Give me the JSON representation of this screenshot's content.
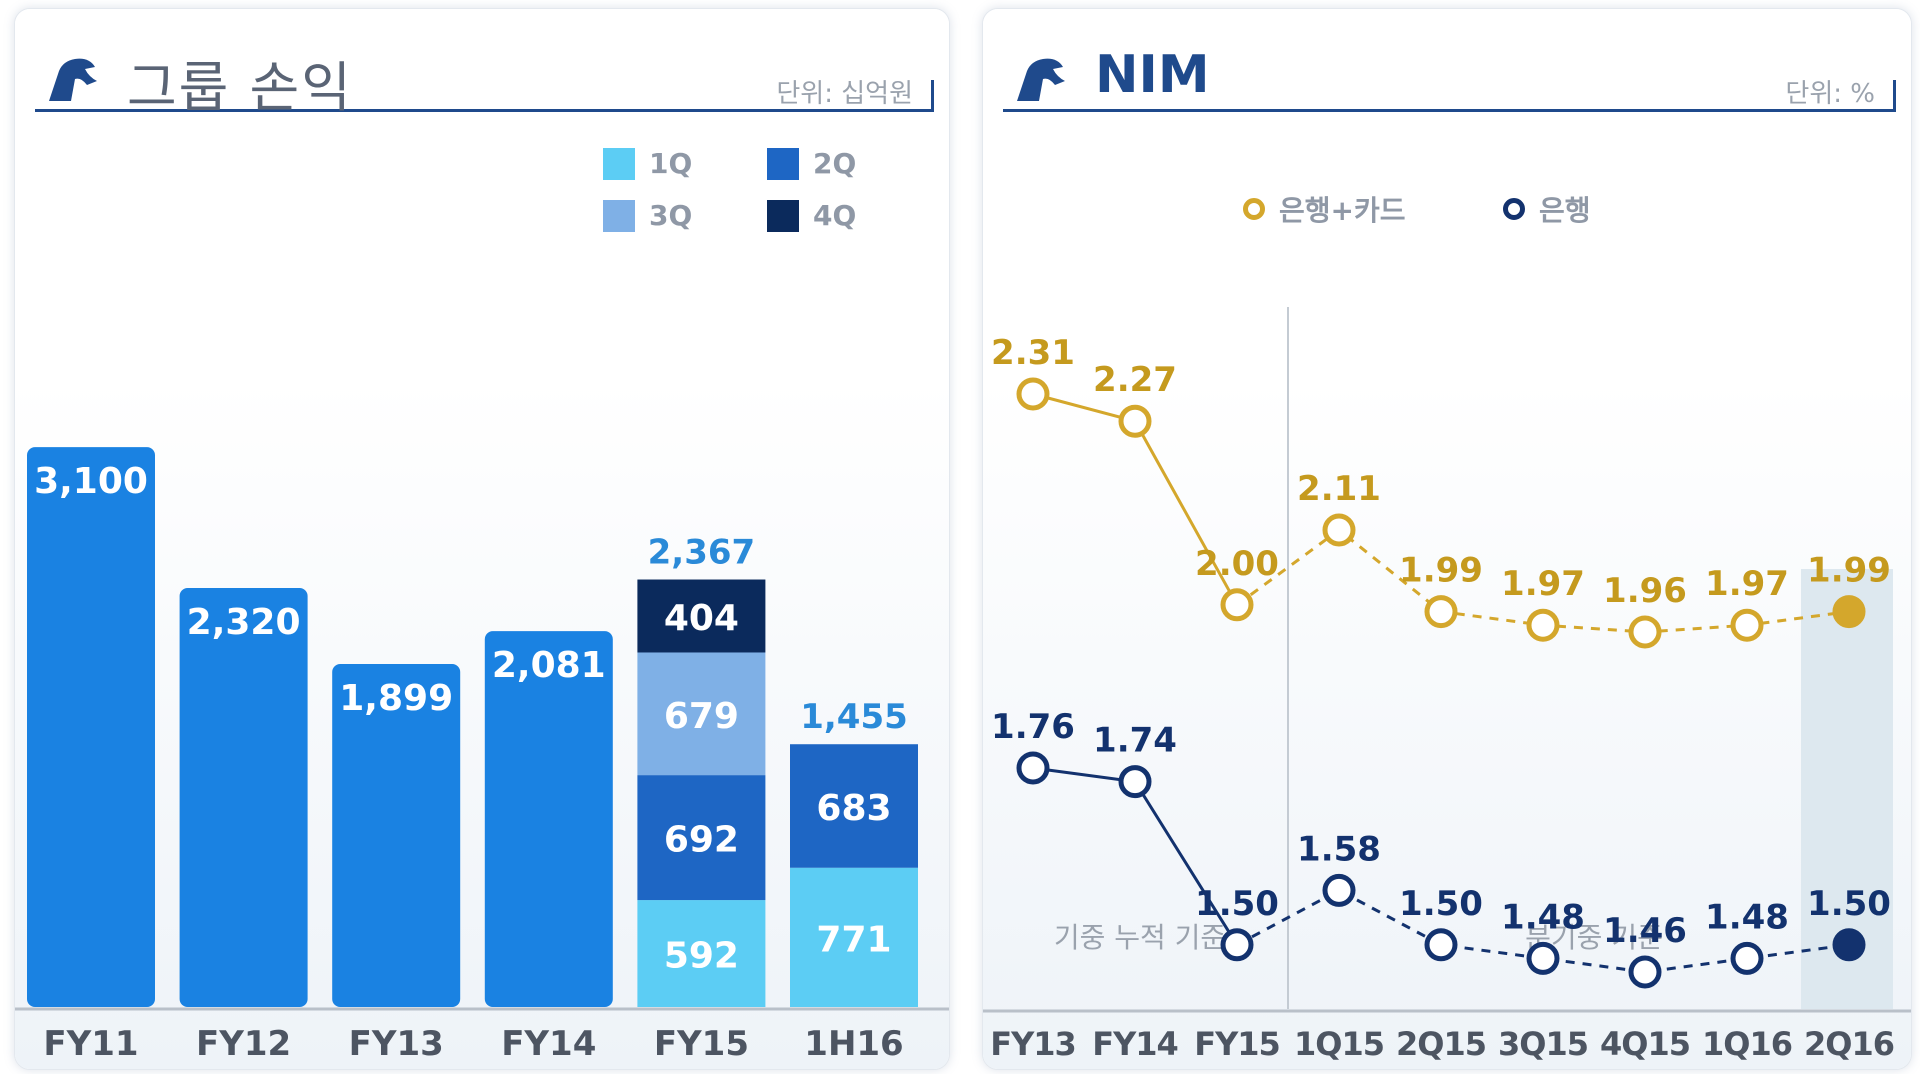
{
  "left_panel": {
    "title": "그룹 손익",
    "unit": "단위: 십억원",
    "legend": [
      {
        "label": "1Q",
        "color": "#5ccdf4"
      },
      {
        "label": "2Q",
        "color": "#1e66c4"
      },
      {
        "label": "3Q",
        "color": "#7fb0e6"
      },
      {
        "label": "4Q",
        "color": "#0b2a5c"
      }
    ]
  },
  "right_panel": {
    "title": "NIM",
    "unit": "단위: %",
    "legend": [
      {
        "label": "은행+카드",
        "color": "#d4a72c"
      },
      {
        "label": "은행",
        "color": "#13326e"
      }
    ],
    "section_labels": [
      "기중 누적 기준",
      "분기중 기준"
    ]
  },
  "chart_data": [
    {
      "type": "bar",
      "title": "그룹 손익",
      "unit": "단위: 십억원",
      "categories": [
        "FY11",
        "FY12",
        "FY13",
        "FY14",
        "FY15",
        "1H16"
      ],
      "totals": [
        3100,
        2320,
        1899,
        2081,
        2367,
        1455
      ],
      "total_labels": [
        "3,100",
        "2,320",
        "1,899",
        "2,081",
        "2,367",
        "1,455"
      ],
      "stacked": [
        {
          "category": "FY15",
          "segments": [
            {
              "series": "1Q",
              "value": 592
            },
            {
              "series": "2Q",
              "value": 692
            },
            {
              "series": "3Q",
              "value": 679
            },
            {
              "series": "4Q",
              "value": 404
            }
          ]
        },
        {
          "category": "1H16",
          "segments": [
            {
              "series": "1Q",
              "value": 771
            },
            {
              "series": "2Q",
              "value": 683
            }
          ]
        }
      ],
      "bar_color": "#1a82e2",
      "total_label_color": "#2a8ad8"
    },
    {
      "type": "line",
      "title": "NIM",
      "unit": "단위: %",
      "x": [
        "FY13",
        "FY14",
        "FY15",
        "1Q15",
        "2Q15",
        "3Q15",
        "4Q15",
        "1Q16",
        "2Q16"
      ],
      "series": [
        {
          "name": "은행+카드",
          "color": "#d4a72c",
          "label_color": "#c59a1e",
          "values": [
            2.31,
            2.27,
            2.0,
            2.11,
            1.99,
            1.97,
            1.96,
            1.97,
            1.99
          ],
          "labels": [
            "2.31",
            "2.27",
            "2.00",
            "2.11",
            "1.99",
            "1.97",
            "1.96",
            "1.97",
            "1.99"
          ]
        },
        {
          "name": "은행",
          "color": "#13326e",
          "label_color": "#13326e",
          "values": [
            1.76,
            1.74,
            1.5,
            1.58,
            1.5,
            1.48,
            1.46,
            1.48,
            1.5
          ],
          "labels": [
            "1.76",
            "1.74",
            "1.50",
            "1.58",
            "1.50",
            "1.48",
            "1.46",
            "1.48",
            "1.50"
          ]
        }
      ],
      "solid_segment_end_index": 2,
      "divider_after_index": 2,
      "highlight_last": true
    }
  ]
}
